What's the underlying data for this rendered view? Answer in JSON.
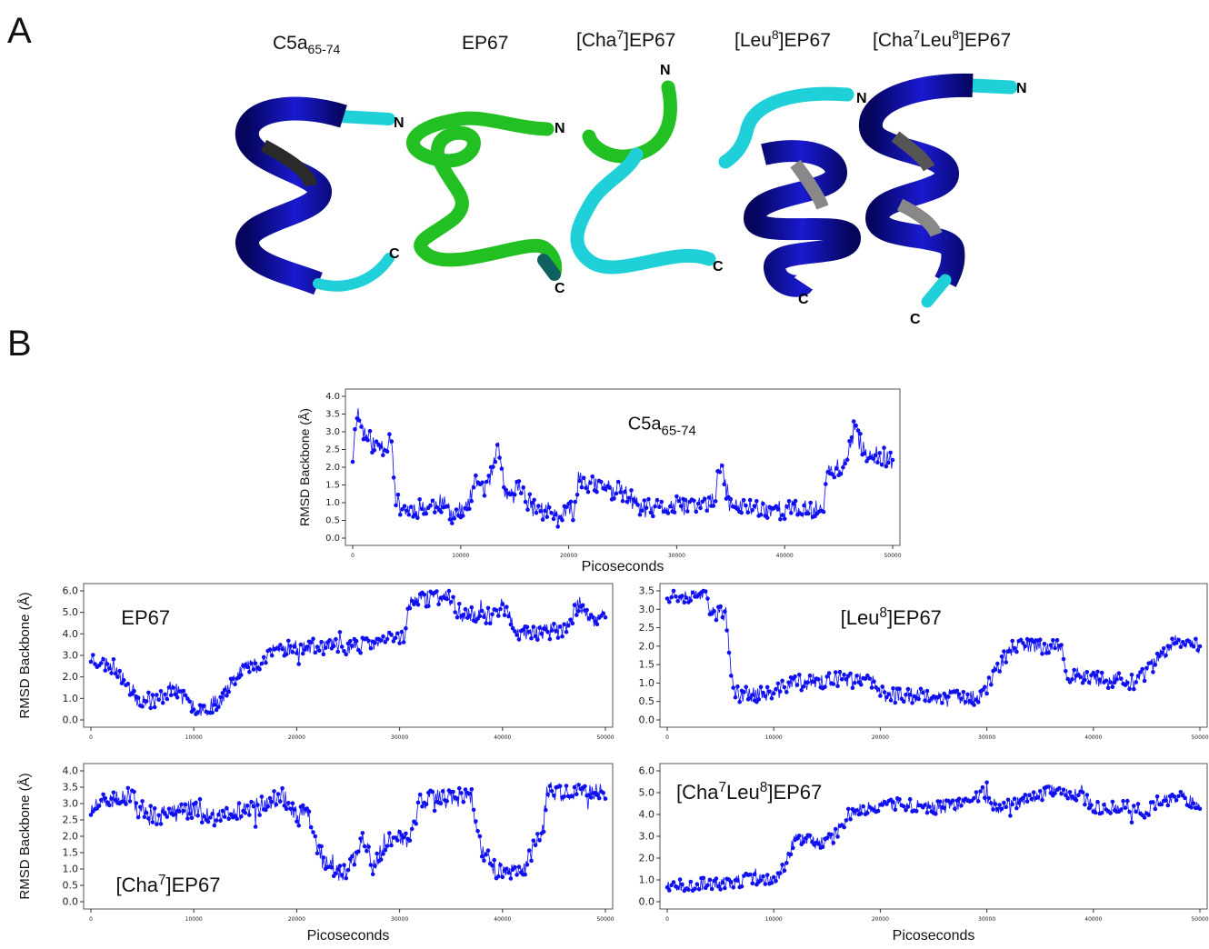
{
  "figure": {
    "panel_a_letter": "A",
    "panel_b_letter": "B",
    "structures": [
      {
        "label_main": "C5a",
        "label_sub": "65-74",
        "label_end": "",
        "n": "N",
        "c": "C"
      },
      {
        "label_main": "EP67",
        "n": "N",
        "c": "C"
      },
      {
        "label_pre": "[Cha",
        "label_sup": "7",
        "label_post": "]EP67",
        "n": "N",
        "c": "C"
      },
      {
        "label_pre": "[Leu",
        "label_sup": "8",
        "label_post": "]EP67",
        "n": "N",
        "c": "C"
      },
      {
        "label_pre": "[Cha",
        "label_sup": "7",
        "label_mid": "Leu",
        "label_sup2": "8",
        "label_post": "]EP67",
        "n": "N",
        "c": "C"
      }
    ],
    "colors": {
      "helix": "#0c0ca8",
      "coil_cyan": "#1fd0d8",
      "coil_green": "#22c022",
      "series": "#1010ee"
    }
  },
  "chart_data": [
    {
      "id": "c5a",
      "type": "line",
      "title_main": "C5a",
      "title_sub": "65-74",
      "xlabel": "Picoseconds",
      "ylabel": "RMSD Backbone (Å)",
      "xlim": [
        0,
        50000
      ],
      "ylim": [
        0,
        4.0
      ],
      "xticks": [
        0,
        10000,
        20000,
        30000,
        40000,
        50000
      ],
      "yticks": [
        "0.0",
        "0.5",
        "1.0",
        "1.5",
        "2.0",
        "2.5",
        "3.0",
        "3.5",
        "4.0"
      ],
      "keypoints": [
        [
          0,
          2.3
        ],
        [
          400,
          3.6
        ],
        [
          1000,
          3.0
        ],
        [
          2000,
          2.6
        ],
        [
          3000,
          2.6
        ],
        [
          3600,
          2.9
        ],
        [
          4000,
          1.0
        ],
        [
          5000,
          0.8
        ],
        [
          7000,
          0.9
        ],
        [
          8000,
          1.0
        ],
        [
          9500,
          0.7
        ],
        [
          10500,
          0.8
        ],
        [
          11500,
          1.6
        ],
        [
          12500,
          1.4
        ],
        [
          13500,
          2.5
        ],
        [
          14300,
          1.0
        ],
        [
          15500,
          1.5
        ],
        [
          16500,
          0.9
        ],
        [
          19000,
          0.6
        ],
        [
          20500,
          0.8
        ],
        [
          21000,
          1.8
        ],
        [
          22000,
          1.5
        ],
        [
          24000,
          1.4
        ],
        [
          25500,
          1.2
        ],
        [
          26500,
          0.8
        ],
        [
          30000,
          0.9
        ],
        [
          33500,
          1.0
        ],
        [
          34000,
          2.1
        ],
        [
          35000,
          0.9
        ],
        [
          40000,
          0.8
        ],
        [
          43500,
          0.8
        ],
        [
          44000,
          1.9
        ],
        [
          45500,
          2.0
        ],
        [
          46500,
          3.0
        ],
        [
          47500,
          2.4
        ],
        [
          50000,
          2.2
        ]
      ],
      "noise": 0.28,
      "seed": 11
    },
    {
      "id": "ep67",
      "type": "line",
      "title": "EP67",
      "xlabel": "",
      "ylabel": "RMSD Backbone (Å)",
      "xlim": [
        0,
        50000
      ],
      "ylim": [
        0,
        6.0
      ],
      "xticks": [
        0,
        10000,
        20000,
        30000,
        40000,
        50000
      ],
      "yticks": [
        "0.0",
        "1.0",
        "2.0",
        "3.0",
        "4.0",
        "5.0",
        "6.0"
      ],
      "keypoints": [
        [
          0,
          2.9
        ],
        [
          2500,
          2.4
        ],
        [
          4500,
          1.0
        ],
        [
          6500,
          0.9
        ],
        [
          8000,
          1.6
        ],
        [
          9500,
          0.7
        ],
        [
          11000,
          0.5
        ],
        [
          12500,
          0.9
        ],
        [
          14500,
          2.4
        ],
        [
          16500,
          2.6
        ],
        [
          18000,
          3.3
        ],
        [
          20000,
          3.4
        ],
        [
          25000,
          3.4
        ],
        [
          28000,
          3.6
        ],
        [
          30500,
          4.0
        ],
        [
          31000,
          5.5
        ],
        [
          34500,
          5.8
        ],
        [
          36000,
          4.9
        ],
        [
          39000,
          4.8
        ],
        [
          40000,
          5.4
        ],
        [
          41500,
          4.0
        ],
        [
          46000,
          4.2
        ],
        [
          47500,
          5.4
        ],
        [
          48500,
          4.5
        ],
        [
          50000,
          5.0
        ]
      ],
      "noise": 0.38,
      "seed": 23
    },
    {
      "id": "leu8",
      "type": "line",
      "title_pre": "[Leu",
      "title_sup": "8",
      "title_post": "]EP67",
      "xlabel": "",
      "ylabel": "",
      "xlim": [
        0,
        50000
      ],
      "ylim": [
        0,
        3.5
      ],
      "xticks": [
        0,
        10000,
        20000,
        30000,
        40000,
        50000
      ],
      "yticks": [
        "0.0",
        "0.5",
        "1.0",
        "1.5",
        "2.0",
        "2.5",
        "3.0",
        "3.5"
      ],
      "keypoints": [
        [
          0,
          3.4
        ],
        [
          3500,
          3.4
        ],
        [
          4000,
          2.9
        ],
        [
          5500,
          2.9
        ],
        [
          6000,
          1.2
        ],
        [
          6500,
          0.7
        ],
        [
          10000,
          0.7
        ],
        [
          11500,
          1.0
        ],
        [
          17000,
          1.1
        ],
        [
          19500,
          1.0
        ],
        [
          20000,
          0.7
        ],
        [
          29000,
          0.6
        ],
        [
          30000,
          0.9
        ],
        [
          31000,
          1.4
        ],
        [
          32500,
          2.0
        ],
        [
          37000,
          2.0
        ],
        [
          37500,
          1.2
        ],
        [
          44000,
          1.0
        ],
        [
          46000,
          1.6
        ],
        [
          48000,
          2.2
        ],
        [
          50000,
          2.0
        ]
      ],
      "noise": 0.22,
      "seed": 37
    },
    {
      "id": "cha7",
      "type": "line",
      "title_pre": "[Cha",
      "title_sup": "7",
      "title_post": "]EP67",
      "xlabel": "Picoseconds",
      "ylabel": "RMSD Backbone (Å)",
      "xlim": [
        0,
        50000
      ],
      "ylim": [
        0,
        4.0
      ],
      "xticks": [
        0,
        10000,
        20000,
        30000,
        40000,
        50000
      ],
      "yticks": [
        "0.0",
        "0.5",
        "1.0",
        "1.5",
        "2.0",
        "2.5",
        "3.0",
        "3.5",
        "4.0"
      ],
      "keypoints": [
        [
          0,
          2.8
        ],
        [
          2000,
          3.1
        ],
        [
          4000,
          3.2
        ],
        [
          5000,
          2.6
        ],
        [
          8000,
          2.7
        ],
        [
          10500,
          2.9
        ],
        [
          12000,
          2.6
        ],
        [
          15000,
          2.8
        ],
        [
          17000,
          3.0
        ],
        [
          18500,
          3.3
        ],
        [
          20000,
          2.6
        ],
        [
          21000,
          2.7
        ],
        [
          22500,
          1.3
        ],
        [
          24500,
          0.8
        ],
        [
          26500,
          1.9
        ],
        [
          27500,
          1.0
        ],
        [
          28500,
          1.8
        ],
        [
          30000,
          2.0
        ],
        [
          31000,
          1.9
        ],
        [
          32000,
          3.1
        ],
        [
          37000,
          3.2
        ],
        [
          37500,
          2.0
        ],
        [
          39000,
          1.0
        ],
        [
          42000,
          0.8
        ],
        [
          43000,
          1.7
        ],
        [
          44000,
          2.3
        ],
        [
          44300,
          3.4
        ],
        [
          50000,
          3.3
        ]
      ],
      "noise": 0.3,
      "seed": 51
    },
    {
      "id": "cha7leu8",
      "type": "line",
      "title_pre": "[Cha",
      "title_sup": "7",
      "title_mid": "Leu",
      "title_sup2": "8",
      "title_post": "]EP67",
      "xlabel": "Picoseconds",
      "ylabel": "",
      "xlim": [
        0,
        50000
      ],
      "ylim": [
        0,
        6.0
      ],
      "xticks": [
        0,
        10000,
        20000,
        30000,
        40000,
        50000
      ],
      "yticks": [
        "0.0",
        "1.0",
        "2.0",
        "3.0",
        "4.0",
        "5.0",
        "6.0"
      ],
      "keypoints": [
        [
          0,
          0.8
        ],
        [
          5000,
          0.8
        ],
        [
          7500,
          1.0
        ],
        [
          10000,
          1.0
        ],
        [
          11000,
          1.6
        ],
        [
          12000,
          2.9
        ],
        [
          14000,
          2.7
        ],
        [
          15500,
          2.9
        ],
        [
          17000,
          4.0
        ],
        [
          18500,
          4.3
        ],
        [
          22000,
          4.5
        ],
        [
          25000,
          4.3
        ],
        [
          28500,
          4.5
        ],
        [
          29500,
          5.0
        ],
        [
          31000,
          4.3
        ],
        [
          35000,
          4.8
        ],
        [
          36000,
          5.1
        ],
        [
          39000,
          4.8
        ],
        [
          40000,
          4.3
        ],
        [
          43000,
          4.4
        ],
        [
          45000,
          4.1
        ],
        [
          46000,
          4.6
        ],
        [
          48500,
          4.8
        ],
        [
          50000,
          4.4
        ]
      ],
      "noise": 0.3,
      "seed": 67
    }
  ]
}
